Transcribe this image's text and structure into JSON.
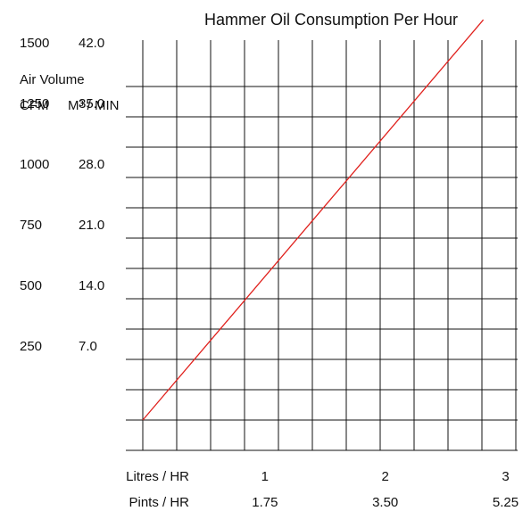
{
  "chart_data": {
    "type": "line",
    "title": "Hammer Oil Consumption Per Hour",
    "y_axis": {
      "label": "Air Volume",
      "unit_headers": [
        "CFM",
        "M³ / MIN"
      ],
      "ticks": [
        {
          "cfm": "1500",
          "m3": "42.0",
          "value": 1500
        },
        {
          "cfm": "1250",
          "m3": "35.0",
          "value": 1250
        },
        {
          "cfm": "1000",
          "m3": "28.0",
          "value": 1000
        },
        {
          "cfm": "750",
          "m3": "21.0",
          "value": 750
        },
        {
          "cfm": "500",
          "m3": "14.0",
          "value": 500
        },
        {
          "cfm": "250",
          "m3": "7.0",
          "value": 250
        }
      ],
      "ylim": [
        0,
        1750
      ]
    },
    "x_axis": {
      "rows": [
        {
          "label": "Litres / HR",
          "ticks": [
            {
              "text": "1",
              "value": 1
            },
            {
              "text": "2",
              "value": 2
            },
            {
              "text": "3",
              "value": 3
            }
          ]
        },
        {
          "label": "Pints / HR",
          "ticks": [
            {
              "text": "1.75",
              "value": 1
            },
            {
              "text": "3.50",
              "value": 2
            },
            {
              "text": "5.25",
              "value": 3
            }
          ]
        }
      ],
      "xlim": [
        0,
        3.1
      ]
    },
    "grid": true,
    "series": [
      {
        "color": "#e0201c",
        "x": [
          0,
          2.83
        ],
        "y": [
          0,
          1650
        ]
      }
    ]
  }
}
